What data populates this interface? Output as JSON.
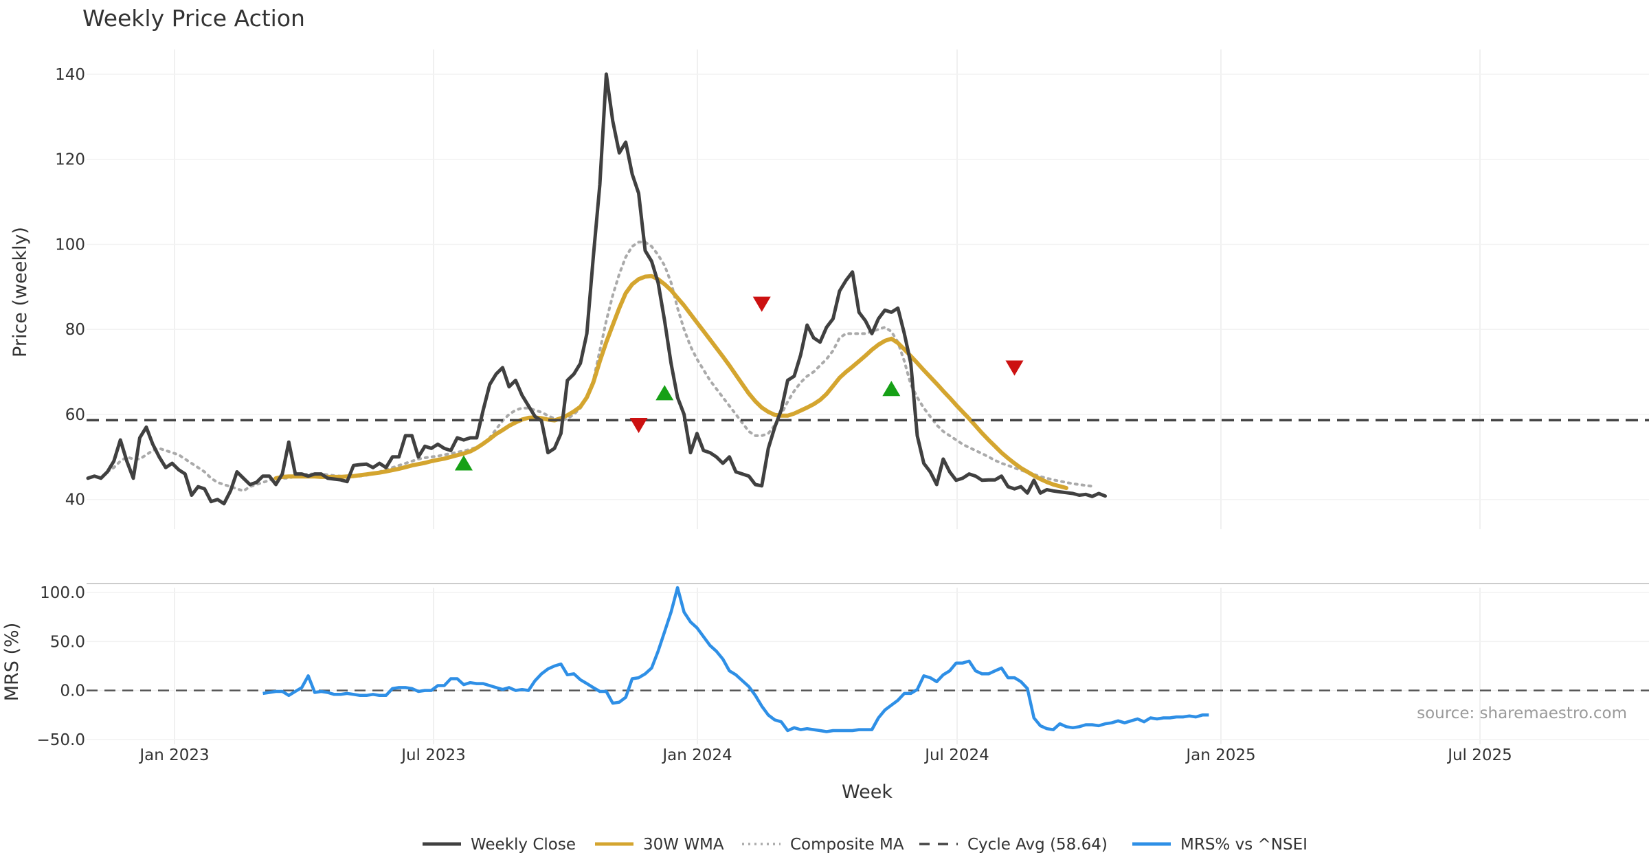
{
  "chart_data": {
    "type": "line",
    "title": "Weekly Price Action",
    "source": "source: sharemaestro.com",
    "xlabel": "Week",
    "x_ticks": [
      "Jan 2023",
      "Jul 2023",
      "Jan 2024",
      "Jul 2024",
      "Jan 2025",
      "Jul 2025"
    ],
    "price_panel": {
      "ylabel": "Price (weekly)",
      "ylim": [
        33,
        145
      ],
      "y_ticks": [
        40,
        60,
        80,
        100,
        120,
        140
      ],
      "y_tick_labels": [
        "40",
        "60",
        "80",
        "100",
        "120",
        "140"
      ],
      "cycle_avg": 58.64,
      "series": [
        {
          "name": "Weekly Close",
          "color": "#404040",
          "start_week": 0,
          "values": [
            45,
            45.5,
            45,
            46.5,
            49,
            54,
            49,
            45,
            54.5,
            57,
            53,
            50,
            47.5,
            48.5,
            47,
            46,
            41,
            43,
            42.5,
            39.5,
            40,
            39,
            42,
            46.5,
            45,
            43.5,
            44,
            45.5,
            45.5,
            43.5,
            46,
            53.5,
            46,
            46,
            45.5,
            46,
            46,
            45,
            44.8,
            44.6,
            44.2,
            48,
            48.2,
            48.3,
            47.5,
            48.5,
            47.5,
            50,
            50,
            55,
            55,
            50,
            52.5,
            52,
            53,
            52,
            51.5,
            54.5,
            54,
            54.5,
            54.5,
            61,
            67,
            69.5,
            71,
            66.5,
            68,
            64.5,
            62,
            59.5,
            58.5,
            51,
            52,
            55.5,
            68,
            69.5,
            72,
            79,
            97,
            114,
            140,
            129,
            121.5,
            124,
            116.5,
            112,
            98.5,
            96,
            91,
            82,
            72,
            64,
            60,
            51,
            55.5,
            51.5,
            51,
            50,
            48.5,
            50,
            46.5,
            46,
            45.5,
            43.5,
            43.2,
            52,
            57,
            61,
            68,
            69,
            74,
            81,
            78,
            77,
            80.5,
            82.5,
            89,
            91.5,
            93.5,
            84,
            82,
            79,
            82.5,
            84.5,
            84,
            85,
            79,
            72,
            55,
            48.5,
            46.5,
            43.5,
            49.5,
            46.5,
            44.5,
            45,
            46,
            45.5,
            44.5,
            44.6,
            44.6,
            45.5,
            43,
            42.5,
            43,
            41.5,
            44.5,
            41.5,
            42.3,
            42,
            41.8,
            41.6,
            41.4,
            41,
            41.2,
            40.7,
            41.4,
            40.8
          ]
        },
        {
          "name": "30W WMA",
          "color": "#d4a52f",
          "start_week": 29,
          "values": [
            45,
            45.3,
            45.4,
            45.4,
            45.4,
            45.4,
            45.4,
            45.3,
            45.3,
            45.3,
            45.3,
            45.4,
            45.5,
            45.7,
            45.9,
            46.1,
            46.3,
            46.6,
            46.9,
            47.2,
            47.6,
            48,
            48.3,
            48.6,
            49,
            49.3,
            49.6,
            50,
            50.4,
            50.8,
            51.3,
            52.1,
            53.1,
            54.2,
            55.4,
            56.3,
            57.3,
            58.1,
            58.8,
            59.2,
            59.3,
            59.1,
            58.8,
            58.6,
            59.1,
            59.8,
            60.7,
            61.8,
            64,
            67.5,
            72.5,
            77,
            81,
            85,
            88.5,
            90.6,
            91.8,
            92.4,
            92.5,
            91.8,
            90.6,
            89.2,
            87.4,
            85.6,
            83.6,
            81.6,
            79.6,
            77.6,
            75.6,
            73.6,
            71.5,
            69.3,
            67.1,
            64.9,
            63.1,
            61.6,
            60.6,
            59.9,
            59.7,
            59.7,
            60.2,
            60.9,
            61.6,
            62.4,
            63.4,
            64.8,
            66.7,
            68.6,
            70,
            71.2,
            72.5,
            73.8,
            75.2,
            76.4,
            77.3,
            77.8,
            76.8,
            75.3,
            73.7,
            72.1,
            70.4,
            68.8,
            67.2,
            65.5,
            63.9,
            62.2,
            60.6,
            59,
            57.3,
            55.6,
            54,
            52.5,
            51,
            49.7,
            48.5,
            47.4,
            46.5,
            45.6,
            44.8,
            44.1,
            43.5,
            43.1,
            42.7
          ]
        },
        {
          "name": "Composite MA",
          "color": "#aaaaaa",
          "start_week": 3,
          "values": [
            46.5,
            47.5,
            49,
            50,
            49.5,
            49.5,
            50.5,
            51.5,
            52,
            51.5,
            51,
            50.5,
            49.5,
            48.5,
            47.5,
            46.5,
            45,
            44,
            43.5,
            43,
            42.5,
            42,
            43,
            43.5,
            44,
            44.5,
            45,
            45,
            45,
            45.5,
            45.7,
            46,
            46,
            46,
            45.8,
            45.6,
            45.5,
            45.5,
            45.5,
            45.5,
            45.7,
            46,
            46.5,
            47,
            47.5,
            48,
            48.5,
            49,
            49.5,
            49.8,
            50,
            50.2,
            50.5,
            50.8,
            51.1,
            51.4,
            51.8,
            52.3,
            53,
            54.5,
            56.5,
            58.5,
            60,
            61,
            61.5,
            61.5,
            61,
            60.5,
            59.7,
            59,
            58.5,
            59,
            60,
            61.5,
            64,
            68,
            75,
            82,
            88,
            93,
            97,
            99.5,
            100.5,
            100.5,
            99.5,
            97.5,
            95,
            91,
            85,
            80,
            76,
            73,
            70.5,
            68,
            66,
            64,
            62,
            60,
            58,
            56,
            55,
            55,
            55.5,
            57.5,
            60,
            63,
            65.5,
            67.5,
            69,
            70,
            71.5,
            73,
            75,
            78,
            79,
            79,
            79,
            79,
            79.5,
            80,
            80.5,
            79.5,
            77,
            72.5,
            67,
            64,
            61.5,
            59.5,
            57.5,
            56,
            55,
            54,
            53,
            52.2,
            51.5,
            50.8,
            50,
            49.2,
            48.5,
            48,
            47.4,
            46.9,
            46.4,
            45.9,
            45.4,
            45,
            44.6,
            44.3,
            44,
            43.7,
            43.5,
            43.3,
            43.1
          ]
        }
      ],
      "cycle_line": {
        "name": "Cycle Avg (58.64)",
        "value": 58.64,
        "color": "#444444"
      },
      "markers": [
        {
          "type": "buy",
          "week": 58,
          "value": 48.5,
          "color": "#16a016"
        },
        {
          "type": "sell",
          "week": 85,
          "value": 57.5,
          "color": "#cc1111"
        },
        {
          "type": "buy",
          "week": 89,
          "value": 65,
          "color": "#16a016"
        },
        {
          "type": "sell",
          "week": 104,
          "value": 86,
          "color": "#cc1111"
        },
        {
          "type": "buy",
          "week": 124,
          "value": 66,
          "color": "#16a016"
        },
        {
          "type": "sell",
          "week": 143,
          "value": 71,
          "color": "#cc1111"
        }
      ]
    },
    "mrs_panel": {
      "ylabel": "MRS (%)",
      "ylim": [
        -55,
        105
      ],
      "y_ticks": [
        100,
        50,
        0,
        -50
      ],
      "y_tick_labels": [
        "100.0",
        "50.0",
        "0.0",
        "−50.0"
      ],
      "zero_line_color": "#555555",
      "series": [
        {
          "name": "MRS% vs ^NSEI",
          "color": "#2e8fe6",
          "start_week": 27,
          "values": [
            -3,
            -2,
            -1,
            -1,
            -5,
            -1,
            3,
            15,
            -2,
            -1,
            -2,
            -4,
            -4,
            -3,
            -4,
            -5,
            -5,
            -4,
            -5,
            -5,
            2,
            3,
            3,
            2,
            -1,
            0,
            0,
            5,
            5,
            12,
            12,
            6,
            8,
            7,
            7,
            5,
            3,
            1,
            3,
            0,
            1,
            0,
            10,
            17,
            22,
            25,
            27,
            16,
            17,
            11,
            7,
            3,
            -1,
            -1,
            -13,
            -12,
            -7,
            12,
            13,
            17,
            23,
            40,
            60,
            80,
            105,
            80,
            70,
            64,
            55,
            46,
            40,
            32,
            20,
            16,
            10,
            4,
            -5,
            -16,
            -25,
            -30,
            -32,
            -41,
            -38,
            -40,
            -39,
            -40,
            -41,
            -42,
            -41,
            -41,
            -41,
            -41,
            -40,
            -40,
            -40,
            -28,
            -20,
            -15,
            -10,
            -3,
            -3,
            1,
            15,
            13,
            9,
            16,
            20,
            28,
            28,
            30,
            20,
            17,
            17,
            20,
            23,
            13,
            13,
            9,
            2,
            -28,
            -36,
            -39,
            -40,
            -34,
            -37,
            -38,
            -37,
            -35,
            -35,
            -36,
            -34,
            -33,
            -31,
            -33,
            -31,
            -29,
            -32,
            -28,
            -29,
            -28,
            -28,
            -27,
            -27,
            -26,
            -27,
            -25,
            -25
          ]
        }
      ]
    },
    "legend": [
      {
        "label": "Weekly Close",
        "style": "solid",
        "color": "#404040"
      },
      {
        "label": "30W WMA",
        "style": "solid",
        "color": "#d4a52f"
      },
      {
        "label": "Composite MA",
        "style": "dotted",
        "color": "#aaaaaa"
      },
      {
        "label": "Cycle Avg (58.64)",
        "style": "dashed",
        "color": "#444444"
      },
      {
        "label": "MRS% vs ^NSEI",
        "style": "solid",
        "color": "#2e8fe6"
      }
    ]
  }
}
